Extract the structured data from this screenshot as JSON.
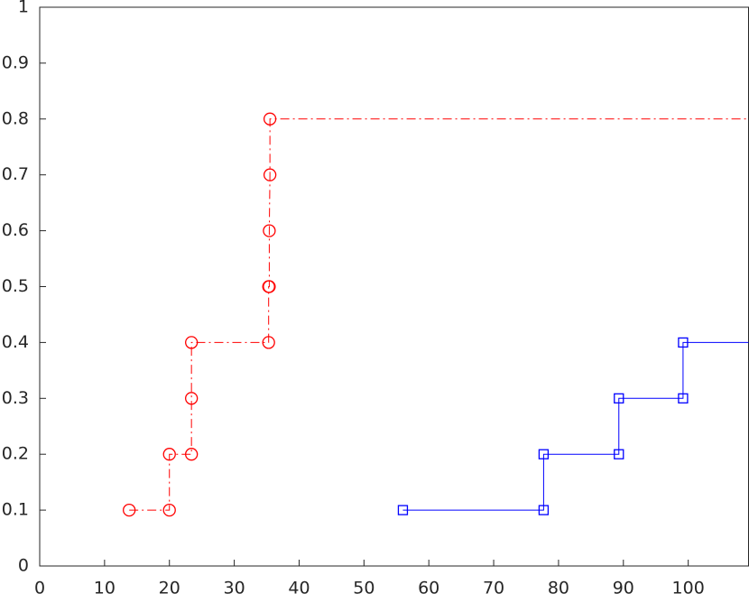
{
  "chart_data": {
    "type": "stairs",
    "xlim": [
      0,
      109.3
    ],
    "ylim": [
      0,
      1
    ],
    "xticks": [
      0,
      10,
      20,
      30,
      40,
      50,
      60,
      70,
      80,
      90,
      100
    ],
    "yticks": [
      0,
      0.1,
      0.2,
      0.3,
      0.4,
      0.5,
      0.6,
      0.7,
      0.8,
      0.9,
      1
    ],
    "series": [
      {
        "color": "#ff0000",
        "linestyle": "dashdot",
        "marker": "circle",
        "x": [
          13.8,
          20.0,
          20.0,
          23.4,
          23.4,
          23.4,
          35.3,
          35.3,
          35.4,
          35.4,
          35.5,
          35.5
        ],
        "values": [
          0.1,
          0.1,
          0.2,
          0.2,
          0.3,
          0.4,
          0.4,
          0.5,
          0.5,
          0.6,
          0.7,
          0.8
        ]
      },
      {
        "color": "#0000ff",
        "linestyle": "solid",
        "marker": "square",
        "x": [
          56.0,
          77.7,
          77.7,
          89.3,
          89.3,
          99.2,
          99.2
        ],
        "values": [
          0.1,
          0.1,
          0.2,
          0.2,
          0.3,
          0.3,
          0.4
        ]
      }
    ]
  }
}
